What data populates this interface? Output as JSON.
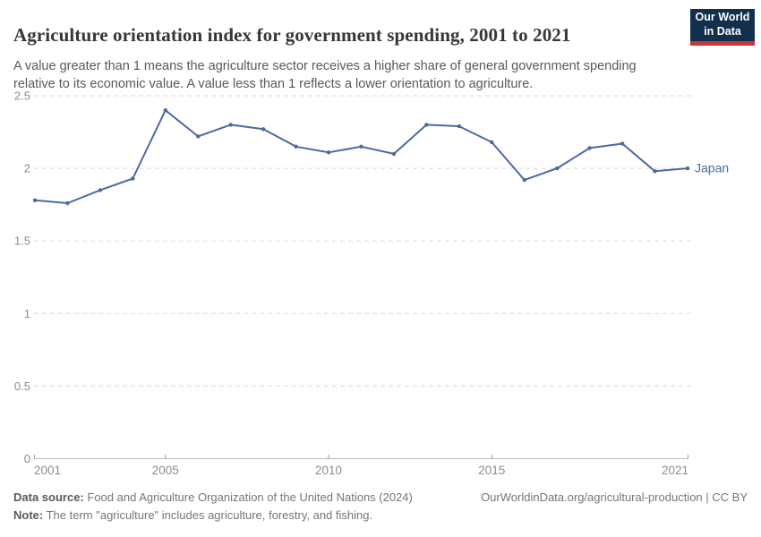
{
  "header": {
    "title": "Agriculture orientation index for government spending, 2001 to 2021",
    "subtitle": "A value greater than 1 means the agriculture sector receives a higher share of general government spending relative to its economic value. A value less than 1 reflects a lower orientation to agriculture."
  },
  "logo": {
    "line1": "Our World",
    "line2": "in Data",
    "bg_color": "#12304e",
    "accent_color": "#c5383a"
  },
  "chart_data": {
    "type": "line",
    "title": "Agriculture orientation index for government spending, 2001 to 2021",
    "xlabel": "",
    "ylabel": "",
    "xlim": [
      2001,
      2021
    ],
    "ylim": [
      0,
      2.5
    ],
    "x_ticks": [
      2001,
      2005,
      2010,
      2015,
      2021
    ],
    "y_ticks": [
      0,
      0.5,
      1,
      1.5,
      2,
      2.5
    ],
    "grid": "horizontal-dashed",
    "legend": "end-of-line-label",
    "x": [
      2001,
      2002,
      2003,
      2004,
      2005,
      2006,
      2007,
      2008,
      2009,
      2010,
      2011,
      2012,
      2013,
      2014,
      2015,
      2016,
      2017,
      2018,
      2019,
      2020,
      2021
    ],
    "series": [
      {
        "name": "Japan",
        "color": "#4C6A9C",
        "values": [
          1.78,
          1.76,
          1.85,
          1.93,
          2.4,
          2.22,
          2.3,
          2.27,
          2.15,
          2.11,
          2.15,
          2.1,
          2.3,
          2.29,
          2.18,
          1.92,
          2.0,
          2.14,
          2.17,
          1.98,
          2.0
        ]
      }
    ]
  },
  "colors": {
    "line": "#4C6A9C",
    "gridline": "#dadada",
    "axis": "#b9b9b9",
    "tick_label": "#8c8c8c"
  },
  "footer": {
    "source_label": "Data source:",
    "source_text": "Food and Agriculture Organization of the United Nations (2024)",
    "note_label": "Note:",
    "note_text": "The term \"agriculture\" includes agriculture, forestry, and fishing.",
    "attribution": "OurWorldinData.org/agricultural-production | CC BY"
  }
}
